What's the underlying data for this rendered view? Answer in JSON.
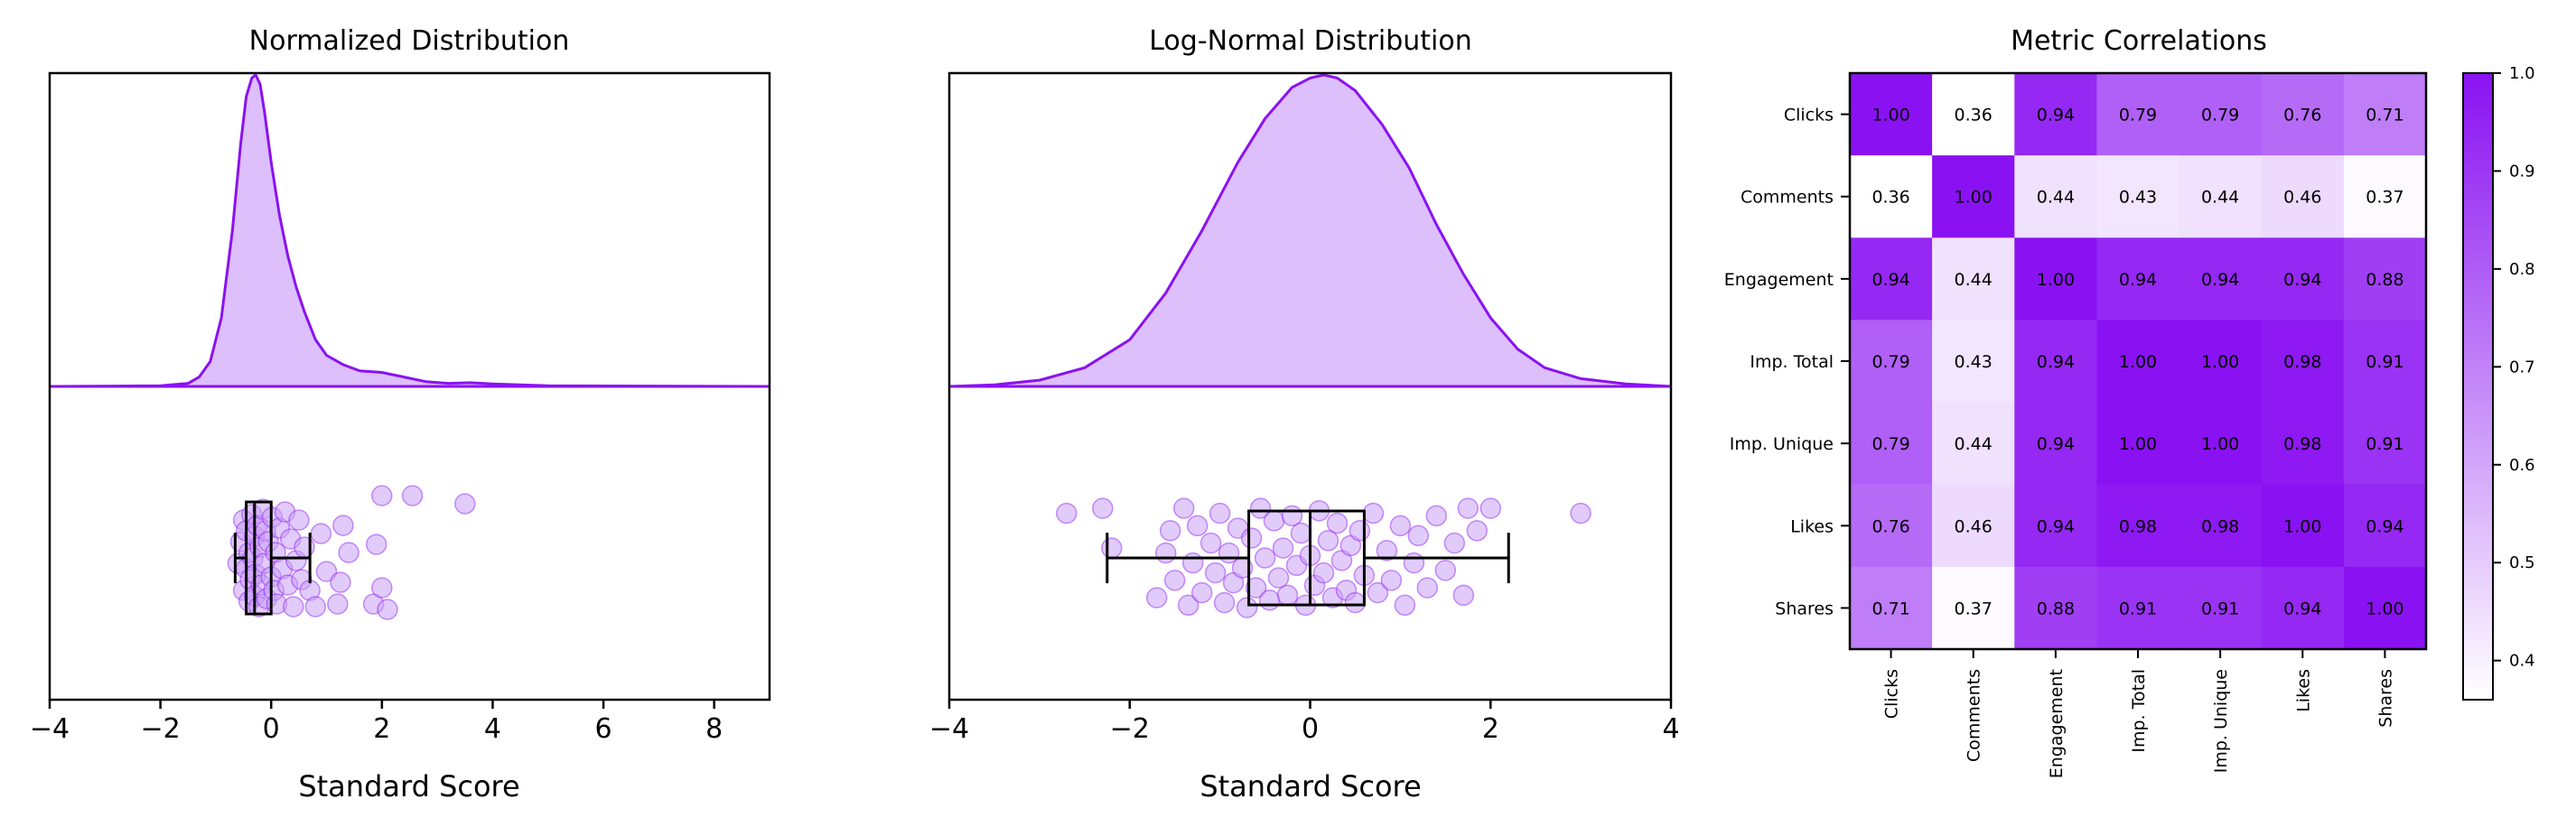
{
  "colors": {
    "accent": "#8a12f2",
    "fill": "#dcbffb",
    "point": "#c9a0f7"
  },
  "chart_data": [
    {
      "type": "density_box_strip",
      "title": "Normalized Distribution",
      "xlabel": "Standard Score",
      "xlim": [
        -4,
        9
      ],
      "xticks": [
        -4,
        -2,
        0,
        2,
        4,
        6,
        8
      ],
      "xtick_labels": [
        "−4",
        "−2",
        "0",
        "2",
        "4",
        "6",
        "8"
      ],
      "density": {
        "x": [
          -4,
          -2,
          -1.5,
          -1.3,
          -1.1,
          -0.9,
          -0.7,
          -0.55,
          -0.45,
          -0.35,
          -0.28,
          -0.2,
          -0.12,
          0,
          0.15,
          0.3,
          0.45,
          0.6,
          0.8,
          1.0,
          1.3,
          1.6,
          2.0,
          2.4,
          2.8,
          3.2,
          3.6,
          4.0,
          5,
          9
        ],
        "y": [
          0,
          0.002,
          0.01,
          0.03,
          0.08,
          0.22,
          0.5,
          0.78,
          0.93,
          0.99,
          1.0,
          0.97,
          0.88,
          0.72,
          0.55,
          0.42,
          0.32,
          0.24,
          0.15,
          0.1,
          0.07,
          0.05,
          0.045,
          0.03,
          0.015,
          0.01,
          0.012,
          0.008,
          0.002,
          0
        ]
      },
      "box": {
        "whislo": -0.65,
        "q1": -0.45,
        "med": -0.3,
        "q3": 0.0,
        "whishi": 0.7
      },
      "points": [
        {
          "x": -0.6,
          "y": 0.1
        },
        {
          "x": -0.55,
          "y": -0.3
        },
        {
          "x": -0.5,
          "y": 0.6
        },
        {
          "x": -0.5,
          "y": -0.7
        },
        {
          "x": -0.45,
          "y": 0.2
        },
        {
          "x": -0.45,
          "y": -0.5
        },
        {
          "x": -0.4,
          "y": 0.8
        },
        {
          "x": -0.4,
          "y": -0.1
        },
        {
          "x": -0.38,
          "y": 0.4
        },
        {
          "x": -0.35,
          "y": -0.8
        },
        {
          "x": -0.33,
          "y": 0.0
        },
        {
          "x": -0.3,
          "y": 0.7
        },
        {
          "x": -0.3,
          "y": -0.4
        },
        {
          "x": -0.28,
          "y": 0.3
        },
        {
          "x": -0.25,
          "y": -0.6
        },
        {
          "x": -0.22,
          "y": 0.9
        },
        {
          "x": -0.2,
          "y": -0.2
        },
        {
          "x": -0.18,
          "y": 0.5
        },
        {
          "x": -0.15,
          "y": -0.9
        },
        {
          "x": -0.12,
          "y": 0.1
        },
        {
          "x": -0.1,
          "y": -0.5
        },
        {
          "x": -0.08,
          "y": 0.75
        },
        {
          "x": -0.05,
          "y": -0.3
        },
        {
          "x": 0.0,
          "y": 0.35
        },
        {
          "x": 0.02,
          "y": -0.75
        },
        {
          "x": 0.05,
          "y": 0.6
        },
        {
          "x": 0.08,
          "y": -0.1
        },
        {
          "x": 0.1,
          "y": 0.85
        },
        {
          "x": 0.15,
          "y": -0.55
        },
        {
          "x": 0.2,
          "y": 0.2
        },
        {
          "x": 0.25,
          "y": -0.85
        },
        {
          "x": 0.3,
          "y": 0.5
        },
        {
          "x": 0.35,
          "y": -0.35
        },
        {
          "x": 0.4,
          "y": 0.9
        },
        {
          "x": 0.45,
          "y": 0.05
        },
        {
          "x": 0.5,
          "y": -0.7
        },
        {
          "x": 0.55,
          "y": 0.4
        },
        {
          "x": 0.6,
          "y": -0.2
        },
        {
          "x": 0.7,
          "y": 0.6
        },
        {
          "x": 0.8,
          "y": 0.9
        },
        {
          "x": 0.9,
          "y": -0.45
        },
        {
          "x": 1.0,
          "y": 0.25
        },
        {
          "x": 1.2,
          "y": 0.85
        },
        {
          "x": 1.25,
          "y": 0.45
        },
        {
          "x": 1.3,
          "y": -0.6
        },
        {
          "x": 1.4,
          "y": -0.1
        },
        {
          "x": 1.85,
          "y": 0.85
        },
        {
          "x": 1.9,
          "y": -0.25
        },
        {
          "x": 2.0,
          "y": 0.55
        },
        {
          "x": 2.0,
          "y": -1.15
        },
        {
          "x": 2.1,
          "y": 0.95
        },
        {
          "x": 2.55,
          "y": -1.15
        },
        {
          "x": 3.5,
          "y": -1.0
        }
      ]
    },
    {
      "type": "density_box_strip",
      "title": "Log-Normal Distribution",
      "xlabel": "Standard Score",
      "xlim": [
        -4,
        4
      ],
      "xticks": [
        -4,
        -2,
        0,
        2,
        4
      ],
      "xtick_labels": [
        "−4",
        "−2",
        "0",
        "2",
        "4"
      ],
      "density": {
        "x": [
          -4,
          -3.5,
          -3.0,
          -2.5,
          -2.0,
          -1.6,
          -1.2,
          -0.8,
          -0.5,
          -0.2,
          0,
          0.15,
          0.3,
          0.5,
          0.8,
          1.1,
          1.4,
          1.7,
          2.0,
          2.3,
          2.6,
          3.0,
          3.5,
          4
        ],
        "y": [
          0,
          0.005,
          0.02,
          0.06,
          0.15,
          0.3,
          0.5,
          0.72,
          0.86,
          0.96,
          0.99,
          1.0,
          0.99,
          0.95,
          0.84,
          0.7,
          0.52,
          0.36,
          0.22,
          0.12,
          0.06,
          0.025,
          0.008,
          0
        ]
      },
      "box": {
        "whislo": -2.25,
        "q1": -0.68,
        "med": 0.0,
        "q3": 0.6,
        "whishi": 2.2
      },
      "points": [
        {
          "x": -2.7,
          "y": -0.9
        },
        {
          "x": -2.3,
          "y": -1.0
        },
        {
          "x": -2.2,
          "y": -0.2
        },
        {
          "x": -1.7,
          "y": 0.8
        },
        {
          "x": -1.6,
          "y": -0.1
        },
        {
          "x": -1.55,
          "y": -0.55
        },
        {
          "x": -1.5,
          "y": 0.45
        },
        {
          "x": -1.4,
          "y": -1.0
        },
        {
          "x": -1.35,
          "y": 0.95
        },
        {
          "x": -1.3,
          "y": 0.1
        },
        {
          "x": -1.25,
          "y": -0.65
        },
        {
          "x": -1.2,
          "y": 0.7
        },
        {
          "x": -1.1,
          "y": -0.3
        },
        {
          "x": -1.05,
          "y": 0.3
        },
        {
          "x": -1.0,
          "y": -0.9
        },
        {
          "x": -0.95,
          "y": 0.9
        },
        {
          "x": -0.9,
          "y": -0.1
        },
        {
          "x": -0.85,
          "y": 0.5
        },
        {
          "x": -0.8,
          "y": -0.6
        },
        {
          "x": -0.75,
          "y": 0.2
        },
        {
          "x": -0.7,
          "y": 1.0
        },
        {
          "x": -0.65,
          "y": -0.4
        },
        {
          "x": -0.6,
          "y": 0.6
        },
        {
          "x": -0.55,
          "y": -1.0
        },
        {
          "x": -0.5,
          "y": 0.0
        },
        {
          "x": -0.45,
          "y": 0.85
        },
        {
          "x": -0.4,
          "y": -0.75
        },
        {
          "x": -0.35,
          "y": 0.4
        },
        {
          "x": -0.3,
          "y": -0.2
        },
        {
          "x": -0.25,
          "y": 0.75
        },
        {
          "x": -0.2,
          "y": -0.85
        },
        {
          "x": -0.15,
          "y": 0.15
        },
        {
          "x": -0.1,
          "y": -0.5
        },
        {
          "x": -0.05,
          "y": 0.95
        },
        {
          "x": 0.0,
          "y": -0.05
        },
        {
          "x": 0.05,
          "y": 0.55
        },
        {
          "x": 0.1,
          "y": -0.95
        },
        {
          "x": 0.15,
          "y": 0.3
        },
        {
          "x": 0.2,
          "y": -0.35
        },
        {
          "x": 0.25,
          "y": 0.8
        },
        {
          "x": 0.3,
          "y": -0.7
        },
        {
          "x": 0.35,
          "y": 0.05
        },
        {
          "x": 0.4,
          "y": 0.65
        },
        {
          "x": 0.45,
          "y": -0.25
        },
        {
          "x": 0.5,
          "y": 0.9
        },
        {
          "x": 0.55,
          "y": -0.55
        },
        {
          "x": 0.6,
          "y": 0.35
        },
        {
          "x": 0.7,
          "y": -0.9
        },
        {
          "x": 0.75,
          "y": 0.7
        },
        {
          "x": 0.85,
          "y": -0.15
        },
        {
          "x": 0.9,
          "y": 0.45
        },
        {
          "x": 1.0,
          "y": -0.65
        },
        {
          "x": 1.05,
          "y": 0.95
        },
        {
          "x": 1.15,
          "y": 0.1
        },
        {
          "x": 1.2,
          "y": -0.45
        },
        {
          "x": 1.3,
          "y": 0.6
        },
        {
          "x": 1.4,
          "y": -0.85
        },
        {
          "x": 1.5,
          "y": 0.25
        },
        {
          "x": 1.6,
          "y": -0.3
        },
        {
          "x": 1.7,
          "y": 0.75
        },
        {
          "x": 1.75,
          "y": -1.0
        },
        {
          "x": 1.85,
          "y": -0.55
        },
        {
          "x": 2.0,
          "y": -1.0
        },
        {
          "x": 3.0,
          "y": -0.9
        }
      ]
    },
    {
      "type": "heatmap",
      "title": "Metric Correlations",
      "labels": [
        "Clicks",
        "Comments",
        "Engagement",
        "Imp. Total",
        "Imp. Unique",
        "Likes",
        "Shares"
      ],
      "matrix": [
        [
          1.0,
          0.36,
          0.94,
          0.79,
          0.79,
          0.76,
          0.71
        ],
        [
          0.36,
          1.0,
          0.44,
          0.43,
          0.44,
          0.46,
          0.37
        ],
        [
          0.94,
          0.44,
          1.0,
          0.94,
          0.94,
          0.94,
          0.88
        ],
        [
          0.79,
          0.43,
          0.94,
          1.0,
          1.0,
          0.98,
          0.91
        ],
        [
          0.79,
          0.44,
          0.94,
          1.0,
          1.0,
          0.98,
          0.91
        ],
        [
          0.76,
          0.46,
          0.94,
          0.98,
          0.98,
          1.0,
          0.94
        ],
        [
          0.71,
          0.37,
          0.88,
          0.91,
          0.91,
          0.94,
          1.0
        ]
      ],
      "colorbar": {
        "range": [
          0.36,
          1.0
        ],
        "ticks": [
          0.4,
          0.5,
          0.6,
          0.7,
          0.8,
          0.9,
          1.0
        ],
        "tick_labels": [
          "0.4",
          "0.5",
          "0.6",
          "0.7",
          "0.8",
          "0.9",
          "1.0"
        ],
        "low_color": "#ffffff",
        "high_color": "#8a12f2"
      }
    }
  ]
}
